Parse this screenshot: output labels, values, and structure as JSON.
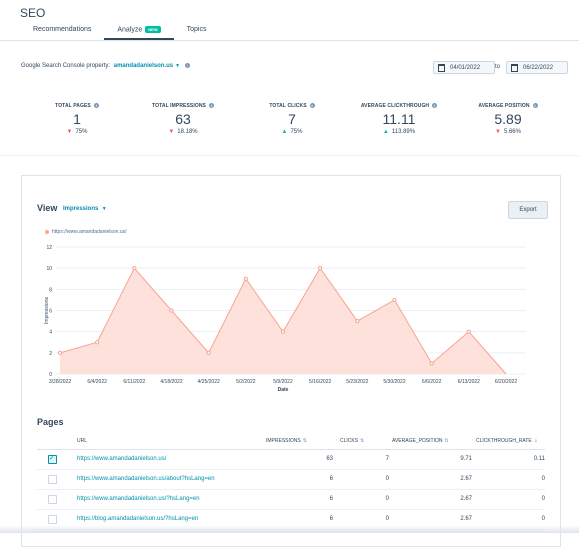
{
  "app": {
    "title": "SEO"
  },
  "tabs": [
    {
      "label": "Recommendations"
    },
    {
      "label": "Analyze",
      "badge": "NEW"
    },
    {
      "label": "Topics"
    }
  ],
  "filters": {
    "gsc_label": "Google Search Console property:",
    "gsc_property": "amandadanielson.us",
    "date_from": "04/01/2022",
    "date_sep": "to",
    "date_to": "06/22/2022"
  },
  "stats": [
    {
      "label": "TOTAL PAGES",
      "value": "1",
      "change": "75%",
      "direction": "down"
    },
    {
      "label": "TOTAL IMPRESSIONS",
      "value": "63",
      "change": "18.18%",
      "direction": "down"
    },
    {
      "label": "TOTAL CLICKS",
      "value": "7",
      "change": "75%",
      "direction": "up"
    },
    {
      "label": "AVERAGE CLICKTHROUGH",
      "value": "11.11",
      "change": "113.89%",
      "direction": "up"
    },
    {
      "label": "AVERAGE POSITION",
      "value": "5.89",
      "change": "5.66%",
      "direction": "down"
    }
  ],
  "view": {
    "label": "View",
    "metric": "Impressions",
    "export_label": "Export"
  },
  "chart_data": {
    "type": "area",
    "series": [
      {
        "name": "https://www.amandadanielson.us/",
        "values": [
          2,
          3,
          10,
          6,
          2,
          9,
          4,
          10,
          5,
          7,
          1,
          4,
          0
        ]
      }
    ],
    "categories": [
      "3/28/2022",
      "6/4/2022",
      "6/11/2022",
      "4/18/2022",
      "4/25/2022",
      "5/2/2022",
      "5/9/2022",
      "5/16/2022",
      "5/23/2022",
      "5/30/2022",
      "6/6/2022",
      "6/13/2022",
      "6/20/2022"
    ],
    "xlabel": "Date",
    "ylabel": "Impressions",
    "ylim": [
      0,
      12
    ],
    "yticks": [
      "0",
      "2",
      "4",
      "6",
      "8",
      "10",
      "12"
    ],
    "color": "#f8a491"
  },
  "pages": {
    "title": "Pages",
    "columns": [
      "URL",
      "IMPRESSIONS",
      "CLICKS",
      "AVERAGE_POSITION",
      "CLICKTHROUGH_RATE"
    ],
    "rows": [
      {
        "checked": true,
        "url": "https://www.amandadanielson.us/",
        "impressions": "63",
        "clicks": "7",
        "avg_position": "9.71",
        "ctr": "0.11"
      },
      {
        "checked": false,
        "url": "https://www.amandadanielson.us/about?hsLang=en",
        "impressions": "6",
        "clicks": "0",
        "avg_position": "2.67",
        "ctr": "0"
      },
      {
        "checked": false,
        "url": "https://www.amandadanielson.us/?hsLang=en",
        "impressions": "6",
        "clicks": "0",
        "avg_position": "2.67",
        "ctr": "0"
      },
      {
        "checked": false,
        "url": "https://blog.amandadanielson.us/?hsLang=en",
        "impressions": "6",
        "clicks": "0",
        "avg_position": "2.67",
        "ctr": "0"
      }
    ]
  }
}
